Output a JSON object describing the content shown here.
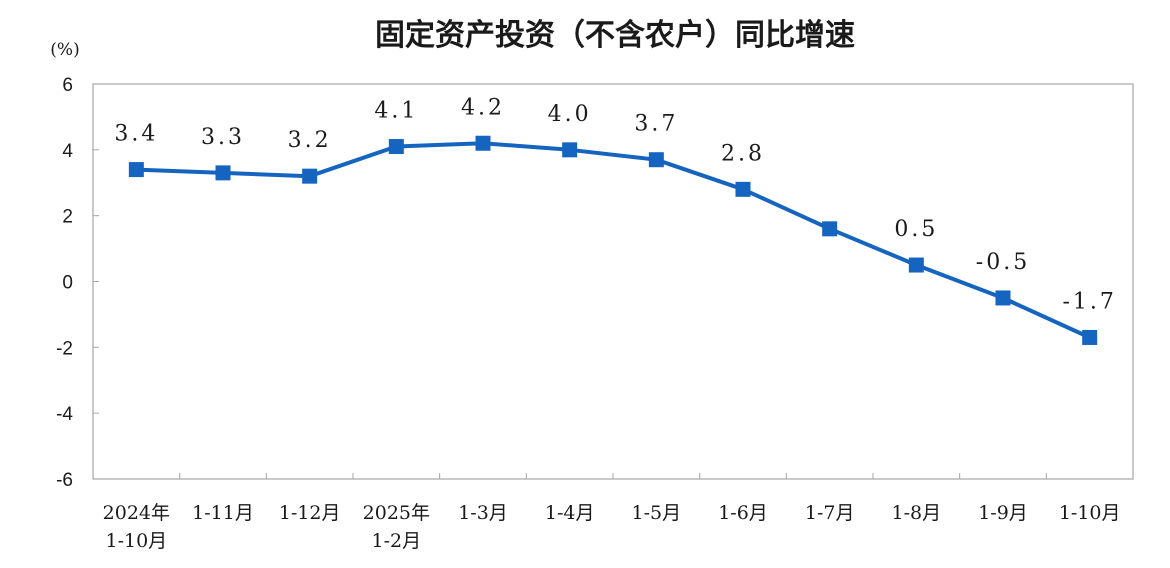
{
  "chart_data": {
    "type": "line",
    "title": "固定资产投资（不含农户）同比增速",
    "ylabel": "(%)",
    "xlabel": "",
    "categories": [
      [
        "2024年",
        "1-10月"
      ],
      [
        "1-11月"
      ],
      [
        "1-12月"
      ],
      [
        "2025年",
        "1-2月"
      ],
      [
        "1-3月"
      ],
      [
        "1-4月"
      ],
      [
        "1-5月"
      ],
      [
        "1-6月"
      ],
      [
        "1-7月"
      ],
      [
        "1-8月"
      ],
      [
        "1-9月"
      ],
      [
        "1-10月"
      ]
    ],
    "series": [
      {
        "values": [
          3.4,
          3.3,
          3.2,
          4.1,
          4.2,
          4.0,
          3.7,
          2.8,
          1.6,
          0.5,
          -0.5,
          -1.7
        ]
      }
    ],
    "data_labels": [
      "3.4",
      "3.3",
      "3.2",
      "4.1",
      "4.2",
      "4.0",
      "3.7",
      "2.8",
      "",
      "0.5",
      "-0.5",
      "-1.7"
    ],
    "ylim": [
      -6,
      6
    ],
    "yticks": [
      6,
      4,
      2,
      0,
      -2,
      -4,
      -6
    ],
    "grid": false,
    "legend": "none",
    "line_color": "#1565c0",
    "marker": "square"
  }
}
